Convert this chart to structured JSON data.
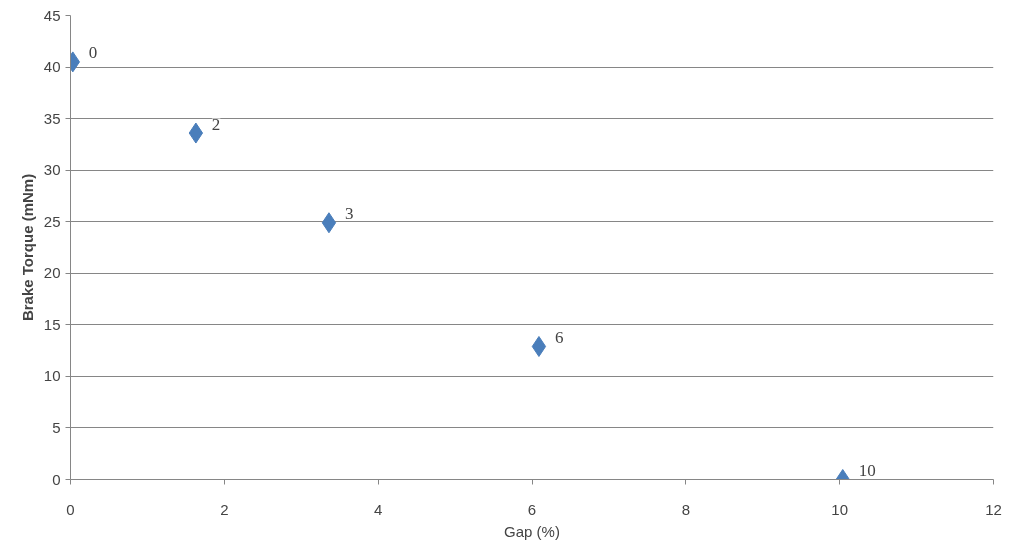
{
  "chart_data": {
    "type": "scatter",
    "xlabel": "Gap (%)",
    "ylabel": "Brake Torque (mNm)",
    "x": [
      0.03,
      1.63,
      3.36,
      6.09,
      10.04
    ],
    "series": [
      {
        "color": "#4a7ebb",
        "values": [
          40.5,
          33.6,
          24.9,
          12.9,
          0
        ]
      }
    ],
    "value_labels": [
      "0",
      "2",
      "3",
      "6",
      "10"
    ],
    "xlim": [
      0,
      12
    ],
    "xticks": [
      0,
      2,
      4,
      6,
      8,
      10,
      12
    ],
    "ylim": [
      0,
      45
    ],
    "yticks": [
      0,
      5,
      10,
      15,
      20,
      25,
      30,
      35,
      40,
      45
    ],
    "grid": "y",
    "marker": "diamond"
  }
}
